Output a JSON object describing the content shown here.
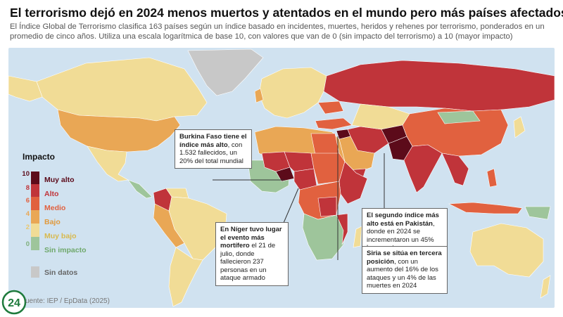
{
  "header": {
    "title": "El terrorismo dejó en 2024 menos muertos y atentados en el mundo pero más países afectados",
    "subtitle": "El Índice Global de Terrorismo clasifica 163 países según un índice basado en incidentes, muertes, heridos y rehenes por terrorismo, ponderados en un promedio de cinco años. Utiliza una escala logarítmica de base 10, con valores que van de 0 (sin impacto del terrorismo) a 10 (mayor impacto)"
  },
  "legend": {
    "title": "Impacto",
    "ticks": [
      "10",
      "8",
      "6",
      "4",
      "2",
      "0"
    ],
    "items": [
      {
        "label": "Muy alto",
        "color": "#5c0b1a"
      },
      {
        "label": "Alto",
        "color": "#c0343a"
      },
      {
        "label": "Medio",
        "color": "#e1613f"
      },
      {
        "label": "Bajo",
        "color": "#e9a755"
      },
      {
        "label": "Muy bajo",
        "color": "#f1dc96"
      },
      {
        "label": "Sin impacto",
        "color": "#9ec59b"
      }
    ],
    "nodata_label": "Sin datos",
    "nodata_color": "#c8c8c8"
  },
  "callouts": {
    "burkina": {
      "strong": "Burkina Faso tiene el índice más alto",
      "rest": ", con 1.532 fallecidos, un 20% del total mundial"
    },
    "niger": {
      "strong": "En Níger tuvo lugar el evento más mortífero",
      "rest": " el 21 de julio, donde fallecieron 237 personas en un ataque armado"
    },
    "pakistan": {
      "strong": "El segundo índice más alto está en Pakistán",
      "rest": ", donde en 2024 se incrementaron un 45% las muertes."
    },
    "siria": {
      "strong": "Siria se sitúa en tercera posición",
      "rest": ", con un aumento del 16% de los ataques y un 4% de las muertes en 2024"
    }
  },
  "footer": {
    "source": "uente: IEP / EpData (2025)",
    "logo_text": "24"
  }
}
